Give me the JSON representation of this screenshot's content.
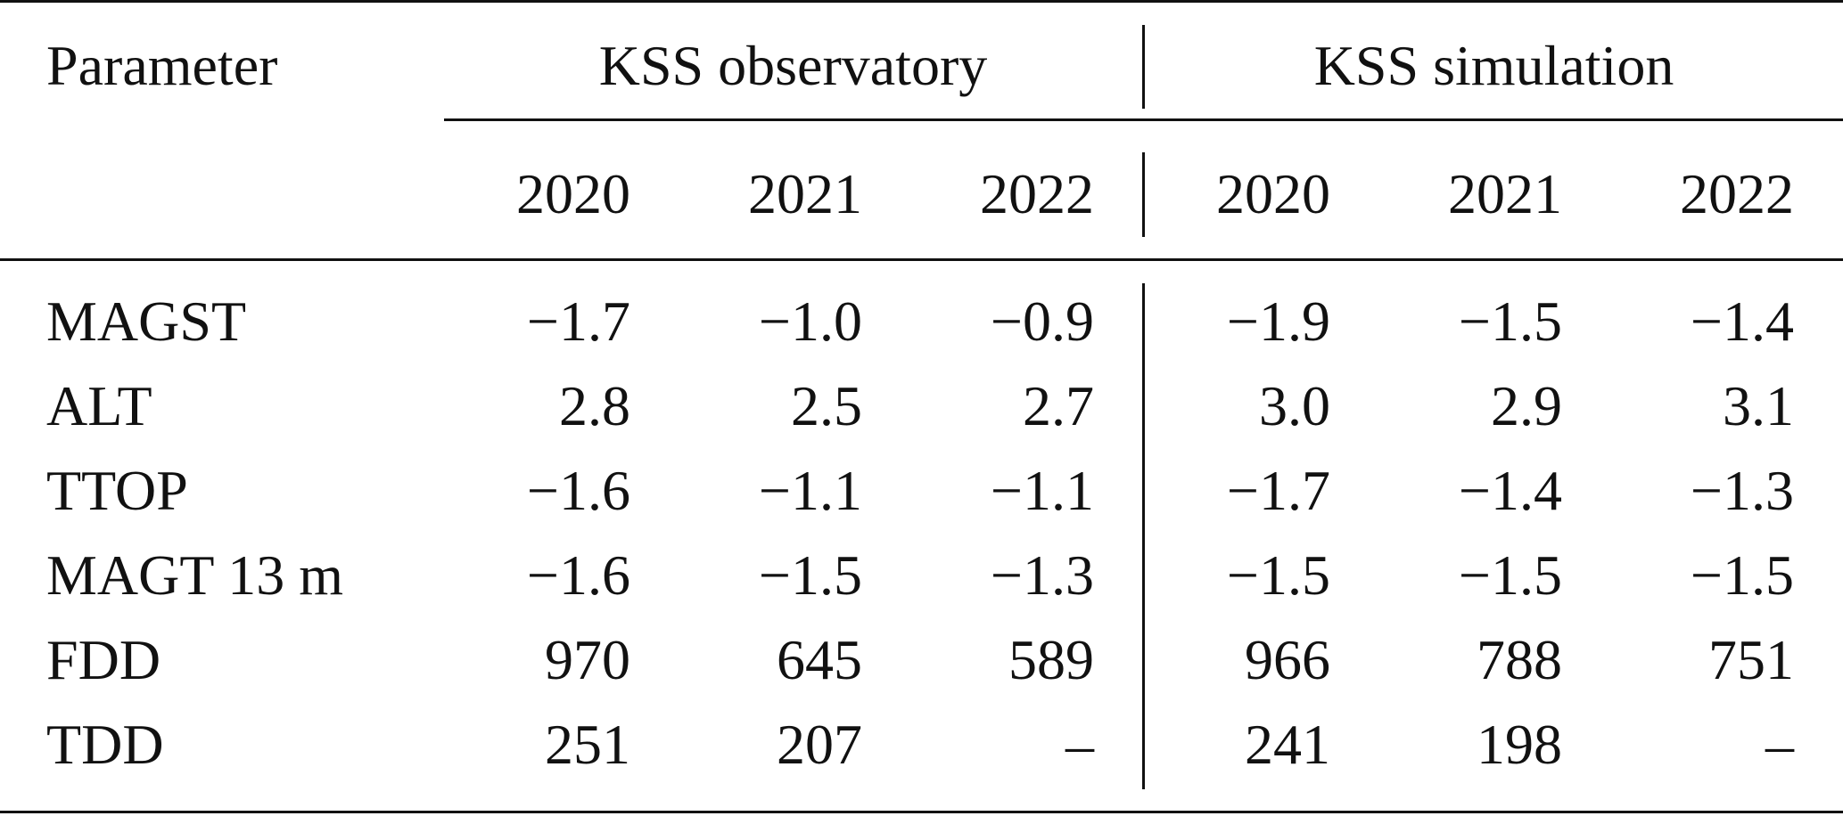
{
  "table": {
    "param_header": "Parameter",
    "group_headers": [
      "KSS observatory",
      "KSS simulation"
    ],
    "years": [
      "2020",
      "2021",
      "2022",
      "2020",
      "2021",
      "2022"
    ],
    "rows": [
      {
        "param": "MAGST",
        "values": [
          "−1.7",
          "−1.0",
          "−0.9",
          "−1.9",
          "−1.5",
          "−1.4"
        ]
      },
      {
        "param": "ALT",
        "values": [
          "2.8",
          "2.5",
          "2.7",
          "3.0",
          "2.9",
          "3.1"
        ]
      },
      {
        "param": "TTOP",
        "values": [
          "−1.6",
          "−1.1",
          "−1.1",
          "−1.7",
          "−1.4",
          "−1.3"
        ]
      },
      {
        "param": "MAGT 13 m",
        "values": [
          "−1.6",
          "−1.5",
          "−1.3",
          "−1.5",
          "−1.5",
          "−1.5"
        ]
      },
      {
        "param": "FDD",
        "values": [
          "970",
          "645",
          "589",
          "966",
          "788",
          "751"
        ]
      },
      {
        "param": "TDD",
        "values": [
          "251",
          "207",
          "–",
          "241",
          "198",
          "–"
        ]
      }
    ]
  }
}
